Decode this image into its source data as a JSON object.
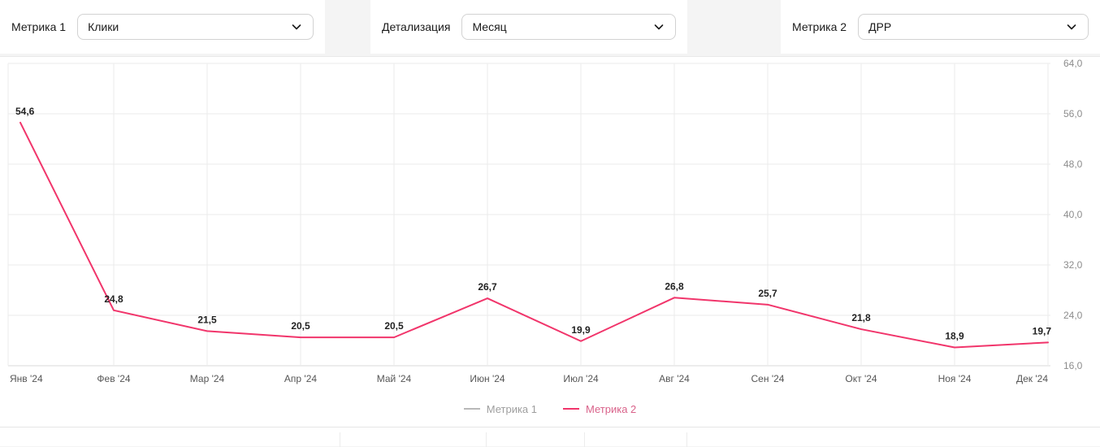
{
  "controls": {
    "metric1": {
      "label": "Метрика 1",
      "value": "Клики"
    },
    "detail": {
      "label": "Детализация",
      "value": "Месяц"
    },
    "metric2": {
      "label": "Метрика 2",
      "value": "ДРР"
    }
  },
  "legend": {
    "metric1_label": "Метрика 1",
    "metric2_label": "Метрика 2"
  },
  "colors": {
    "metric2_line": "#f1356b",
    "metric1_line": "#b8b8b8",
    "grid": "#ebebeb",
    "axis_line": "#d9d9d9",
    "x_label": "#565656",
    "y_label": "#8c8c8c",
    "data_label": "#222222"
  },
  "chart_data": {
    "type": "line",
    "categories": [
      "Янв '24",
      "Фев '24",
      "Мар '24",
      "Апр '24",
      "Май '24",
      "Июн '24",
      "Июл '24",
      "Авг '24",
      "Сен '24",
      "Окт '24",
      "Ноя '24",
      "Дек '24"
    ],
    "series": [
      {
        "name": "Метрика 2",
        "values": [
          54.6,
          24.8,
          21.5,
          20.5,
          20.5,
          26.7,
          19.9,
          26.8,
          25.7,
          21.8,
          18.9,
          19.7
        ]
      }
    ],
    "title": "",
    "xlabel": "",
    "ylabel": "",
    "ylim": [
      16,
      64
    ],
    "yticks": [
      16,
      24,
      32,
      40,
      48,
      56,
      64
    ],
    "ytick_labels": [
      "16,0",
      "24,0",
      "32,0",
      "40,0",
      "48,0",
      "56,0",
      "64,0"
    ],
    "grid": true,
    "legend_position": "bottom"
  }
}
